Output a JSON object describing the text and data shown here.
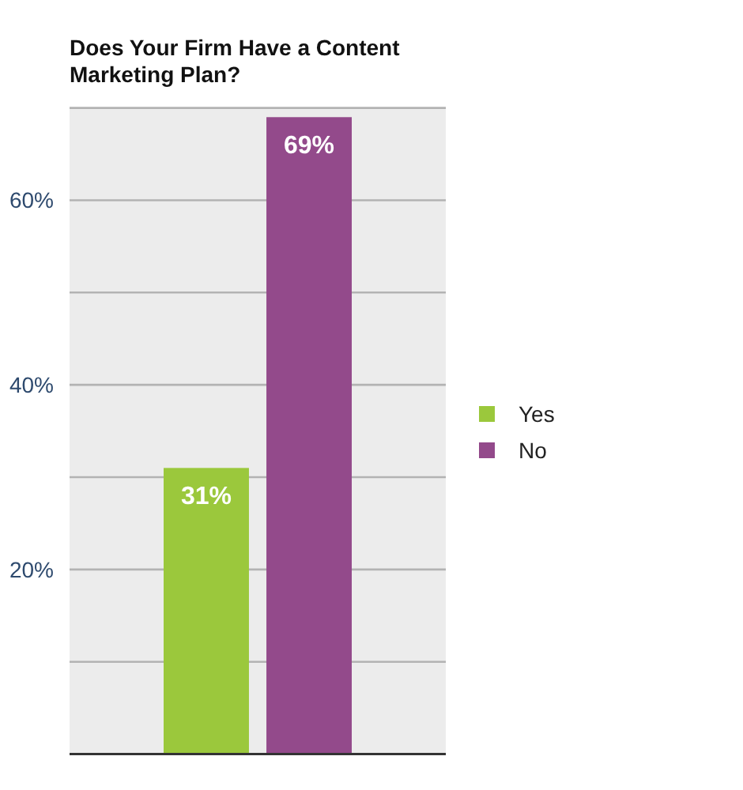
{
  "chart_data": {
    "type": "bar",
    "title": "Does Your Firm Have a Content Marketing Plan?",
    "categories": [
      null
    ],
    "series": [
      {
        "name": "Yes",
        "color": "#9bc83c",
        "values": [
          31
        ],
        "value_labels": [
          "31%"
        ]
      },
      {
        "name": "No",
        "color": "#934a8b",
        "values": [
          69
        ],
        "value_labels": [
          "69%"
        ]
      }
    ],
    "ylim": [
      0,
      70
    ],
    "yticks": [
      {
        "value": 10,
        "label": null
      },
      {
        "value": 20,
        "label": "20%"
      },
      {
        "value": 30,
        "label": null
      },
      {
        "value": 40,
        "label": "40%"
      },
      {
        "value": 50,
        "label": null
      },
      {
        "value": 60,
        "label": "60%"
      },
      {
        "value": 70,
        "label": null
      }
    ],
    "grid": "y",
    "legend": "right"
  }
}
